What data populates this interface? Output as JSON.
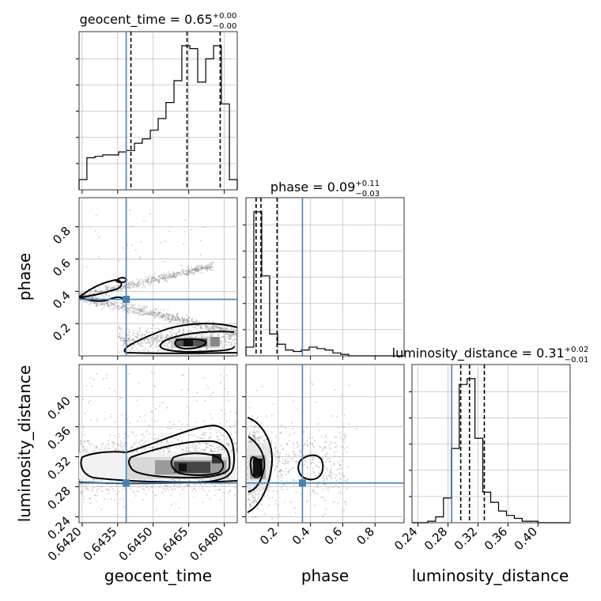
{
  "colors": {
    "truth": "#4682b4",
    "hist": "#000000",
    "grid": "#c0c0c0",
    "scatter": "#808080"
  },
  "chart_data": {
    "type": "corner",
    "parameters": [
      "geocent_time",
      "phase",
      "luminosity_distance"
    ],
    "truths": {
      "geocent_time": 0.64386,
      "phase": 0.35,
      "luminosity_distance": 0.285
    },
    "titles": [
      {
        "param": "geocent_time",
        "label": "geocent_time = 0.65",
        "up": "+0.00",
        "down": "−0.00"
      },
      {
        "param": "phase",
        "label": "phase = 0.09",
        "up": "+0.11",
        "down": "−0.03"
      },
      {
        "param": "luminosity_distance",
        "label": "luminosity_distance = 0.31",
        "up": "+0.02",
        "down": "−0.01"
      }
    ],
    "axis_labels": {
      "geocent_time": "geocent_time",
      "phase": "phase",
      "luminosity_distance": "luminosity_distance"
    },
    "ranges": {
      "geocent_time": [
        0.64187,
        0.64855
      ],
      "phase": [
        0.0,
        0.98
      ],
      "luminosity_distance": [
        0.232,
        0.443
      ]
    },
    "ticks": {
      "geocent_time": [
        {
          "v": 0.642,
          "label": "0.6420"
        },
        {
          "v": 0.6435,
          "label": "0.6435"
        },
        {
          "v": 0.645,
          "label": "0.6450"
        },
        {
          "v": 0.6465,
          "label": "0.6465"
        },
        {
          "v": 0.648,
          "label": "0.6480"
        }
      ],
      "phase": [
        {
          "v": 0.2,
          "label": "0.2"
        },
        {
          "v": 0.4,
          "label": "0.4"
        },
        {
          "v": 0.6,
          "label": "0.6"
        },
        {
          "v": 0.8,
          "label": "0.8"
        }
      ],
      "luminosity_distance": [
        {
          "v": 0.24,
          "label": "0.24"
        },
        {
          "v": 0.28,
          "label": "0.28"
        },
        {
          "v": 0.32,
          "label": "0.32"
        },
        {
          "v": 0.36,
          "label": "0.36"
        },
        {
          "v": 0.4,
          "label": "0.40"
        }
      ]
    },
    "hist_geocent_time": {
      "edges": [
        0.64187,
        0.6422,
        0.64254,
        0.64287,
        0.64321,
        0.64354,
        0.64387,
        0.64421,
        0.64454,
        0.64488,
        0.64521,
        0.64554,
        0.64588,
        0.64621,
        0.64655,
        0.64688,
        0.64722,
        0.64755,
        0.64788,
        0.64822,
        0.64855
      ],
      "counts": [
        0.07,
        0.22,
        0.23,
        0.24,
        0.24,
        0.26,
        0.27,
        0.32,
        0.35,
        0.41,
        0.49,
        0.6,
        0.75,
        0.99,
        0.97,
        0.74,
        0.9,
        0.99,
        0.59,
        0.07
      ],
      "quantiles": [
        0.64406,
        0.64643,
        0.64783
      ]
    },
    "hist_phase": {
      "edges": [
        0.0,
        0.049,
        0.098,
        0.147,
        0.196,
        0.245,
        0.294,
        0.343,
        0.392,
        0.441,
        0.49,
        0.539,
        0.588,
        0.637,
        0.686,
        0.735,
        0.784,
        0.833,
        0.882,
        0.931,
        0.98
      ],
      "counts": [
        0.06,
        0.99,
        0.55,
        0.15,
        0.08,
        0.04,
        0.03,
        0.04,
        0.06,
        0.05,
        0.04,
        0.02,
        0.01,
        0.0,
        0.0,
        0.0,
        0.0,
        0.0,
        0.0,
        0.0
      ],
      "quantiles": [
        0.063,
        0.093,
        0.193
      ]
    },
    "hist_luminosity_distance": {
      "edges": [
        0.232,
        0.2425,
        0.253,
        0.2635,
        0.274,
        0.2845,
        0.295,
        0.3055,
        0.316,
        0.3265,
        0.337,
        0.3475,
        0.358,
        0.3685,
        0.379,
        0.3895,
        0.4,
        0.4105,
        0.421,
        0.4315,
        0.443
      ],
      "counts": [
        0.0,
        0.0,
        0.01,
        0.04,
        0.17,
        0.51,
        0.95,
        0.99,
        0.58,
        0.21,
        0.14,
        0.08,
        0.05,
        0.03,
        0.01,
        0.01,
        0.0,
        0.0,
        0.0,
        0.0
      ],
      "quantiles": [
        0.297,
        0.3087,
        0.3285
      ]
    },
    "grid": true,
    "legend": "none"
  }
}
